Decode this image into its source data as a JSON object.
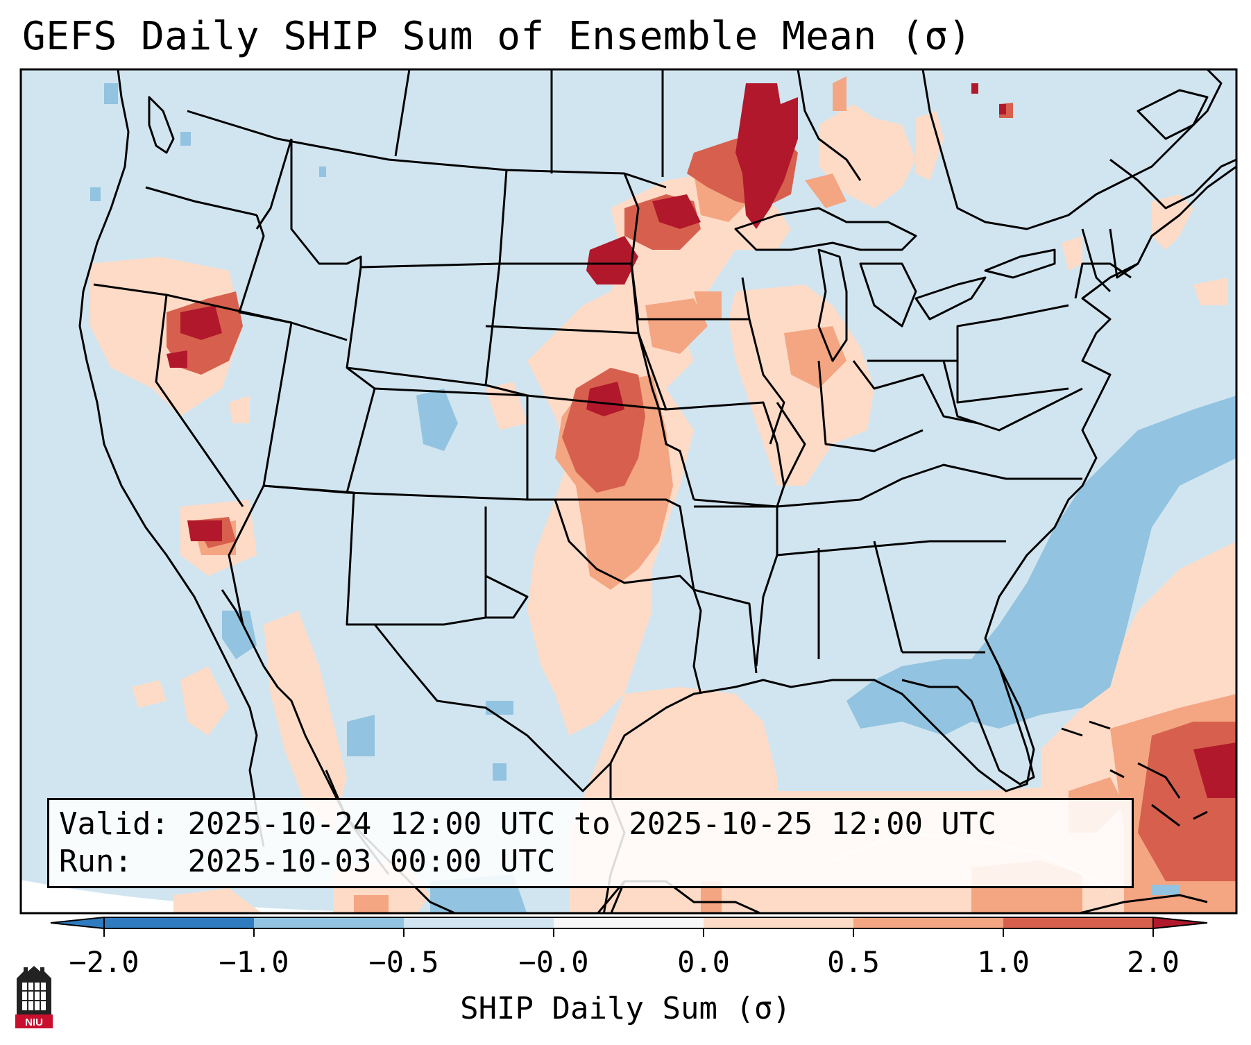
{
  "title": "GEFS Daily SHIP Sum of Ensemble Mean (σ)",
  "info": {
    "valid_label": "Valid:",
    "valid_value": "2025-10-24 12:00 UTC to 2025-10-25 12:00 UTC",
    "run_label": "Run:",
    "run_value": "2025-10-03 00:00 UTC"
  },
  "colorbar": {
    "label": "SHIP Daily Sum (σ)",
    "ticks": [
      "−2.0",
      "−1.0",
      "−0.5",
      "−0.0",
      "0.0",
      "0.5",
      "1.0",
      "2.0"
    ],
    "colors": [
      "#2f7bbf",
      "#92c3e0",
      "#d1e5f0",
      "#f7f7f7",
      "#fddbc7",
      "#f4a582",
      "#d6604d",
      "#b2182b"
    ],
    "extend": "both"
  },
  "logo": {
    "text": "NIU",
    "accent": "#c8102e"
  },
  "colors": {
    "background_field": "#d1e5f0",
    "state_lines": "#000000"
  }
}
